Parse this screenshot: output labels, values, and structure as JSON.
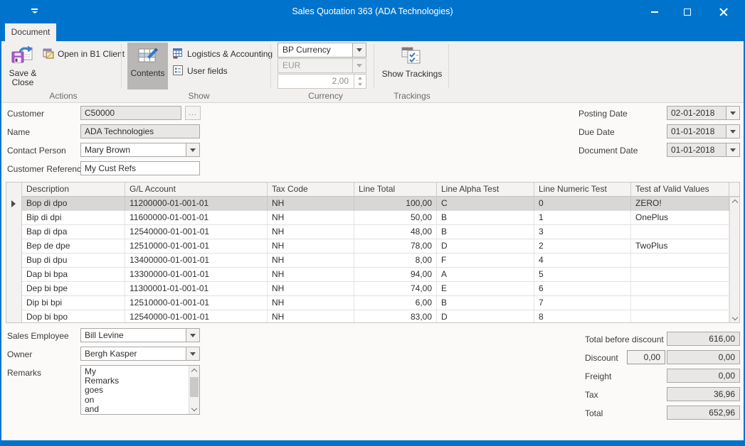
{
  "window": {
    "title": "Sales Quotation 363 (ADA Technologies)",
    "tab_label": "Document"
  },
  "ribbon": {
    "actions": {
      "group_label": "Actions",
      "save_close_label": "Save &\nClose",
      "open_b1_label": "Open in B1 Client"
    },
    "show": {
      "group_label": "Show",
      "contents_label": "Contents",
      "logistics_label": "Logistics & Accounting",
      "user_fields_label": "User fields"
    },
    "currency": {
      "group_label": "Currency",
      "bp_currency_value": "BP Currency",
      "currency_code_value": "EUR",
      "rate_value": "2,00"
    },
    "trackings": {
      "group_label": "Trackings",
      "show_trackings_label": "Show Trackings"
    }
  },
  "form": {
    "customer_label": "Customer",
    "customer_value": "C50000",
    "browse_label": "…",
    "name_label": "Name",
    "name_value": "ADA Technologies",
    "contact_person_label": "Contact Person",
    "contact_person_value": "Mary Brown",
    "customer_reference_label": "Customer Reference",
    "customer_reference_value": "My Cust Refs",
    "posting_date_label": "Posting Date",
    "posting_date_value": "02-01-2018",
    "due_date_label": "Due Date",
    "due_date_value": "01-01-2018",
    "document_date_label": "Document Date",
    "document_date_value": "01-01-2018"
  },
  "grid": {
    "columns": [
      "Description",
      "G/L Account",
      "Tax Code",
      "Line Total",
      "Line Alpha Test",
      "Line Numeric Test",
      "Test af Valid Values"
    ],
    "rows": [
      {
        "cells": [
          "Bop di dpo",
          "11200000-01-001-01",
          "NH",
          "100,00",
          "C",
          "0",
          "ZERO!"
        ],
        "selected": true
      },
      {
        "cells": [
          "Bip di dpi",
          "11600000-01-001-01",
          "NH",
          "50,00",
          "B",
          "1",
          "OnePlus"
        ]
      },
      {
        "cells": [
          "Bap di dpa",
          "12540000-01-001-01",
          "NH",
          "48,00",
          "B",
          "3",
          ""
        ]
      },
      {
        "cells": [
          "Bep de dpe",
          "12510000-01-001-01",
          "NH",
          "78,00",
          "D",
          "2",
          "TwoPlus"
        ]
      },
      {
        "cells": [
          "Bup di dpu",
          "13400000-01-001-01",
          "NH",
          "8,00",
          "F",
          "4",
          ""
        ]
      },
      {
        "cells": [
          "Dap bi bpa",
          "13300000-01-001-01",
          "NH",
          "94,00",
          "A",
          "5",
          ""
        ]
      },
      {
        "cells": [
          "Dep bi bpe",
          "11300001-01-001-01",
          "NH",
          "74,00",
          "E",
          "6",
          ""
        ]
      },
      {
        "cells": [
          "Dip bi bpi",
          "12510000-01-001-01",
          "NH",
          "6,00",
          "B",
          "7",
          ""
        ]
      },
      {
        "cells": [
          "Dop bi bpo",
          "12540000-01-001-01",
          "NH",
          "83,00",
          "D",
          "8",
          ""
        ]
      }
    ]
  },
  "footer": {
    "sales_employee_label": "Sales Employee",
    "sales_employee_value": "Bill Levine",
    "owner_label": "Owner",
    "owner_value": "Bergh Kasper",
    "remarks_label": "Remarks",
    "remarks_value": "My\nRemarks\ngoes\non\nand",
    "totals": {
      "total_before_discount_label": "Total before discount",
      "total_before_discount_value": "616,00",
      "discount_label": "Discount",
      "discount_pct_value": "0,00",
      "discount_value": "0,00",
      "freight_label": "Freight",
      "freight_value": "0,00",
      "tax_label": "Tax",
      "tax_value": "36,96",
      "total_label": "Total",
      "total_value": "652,96"
    }
  },
  "colors": {
    "titlebar_blue": "#0074cc",
    "ribbon_bg": "#f2f0ef",
    "selected_row": "#d9d7d6",
    "disabled_field": "#e9e7e6"
  }
}
